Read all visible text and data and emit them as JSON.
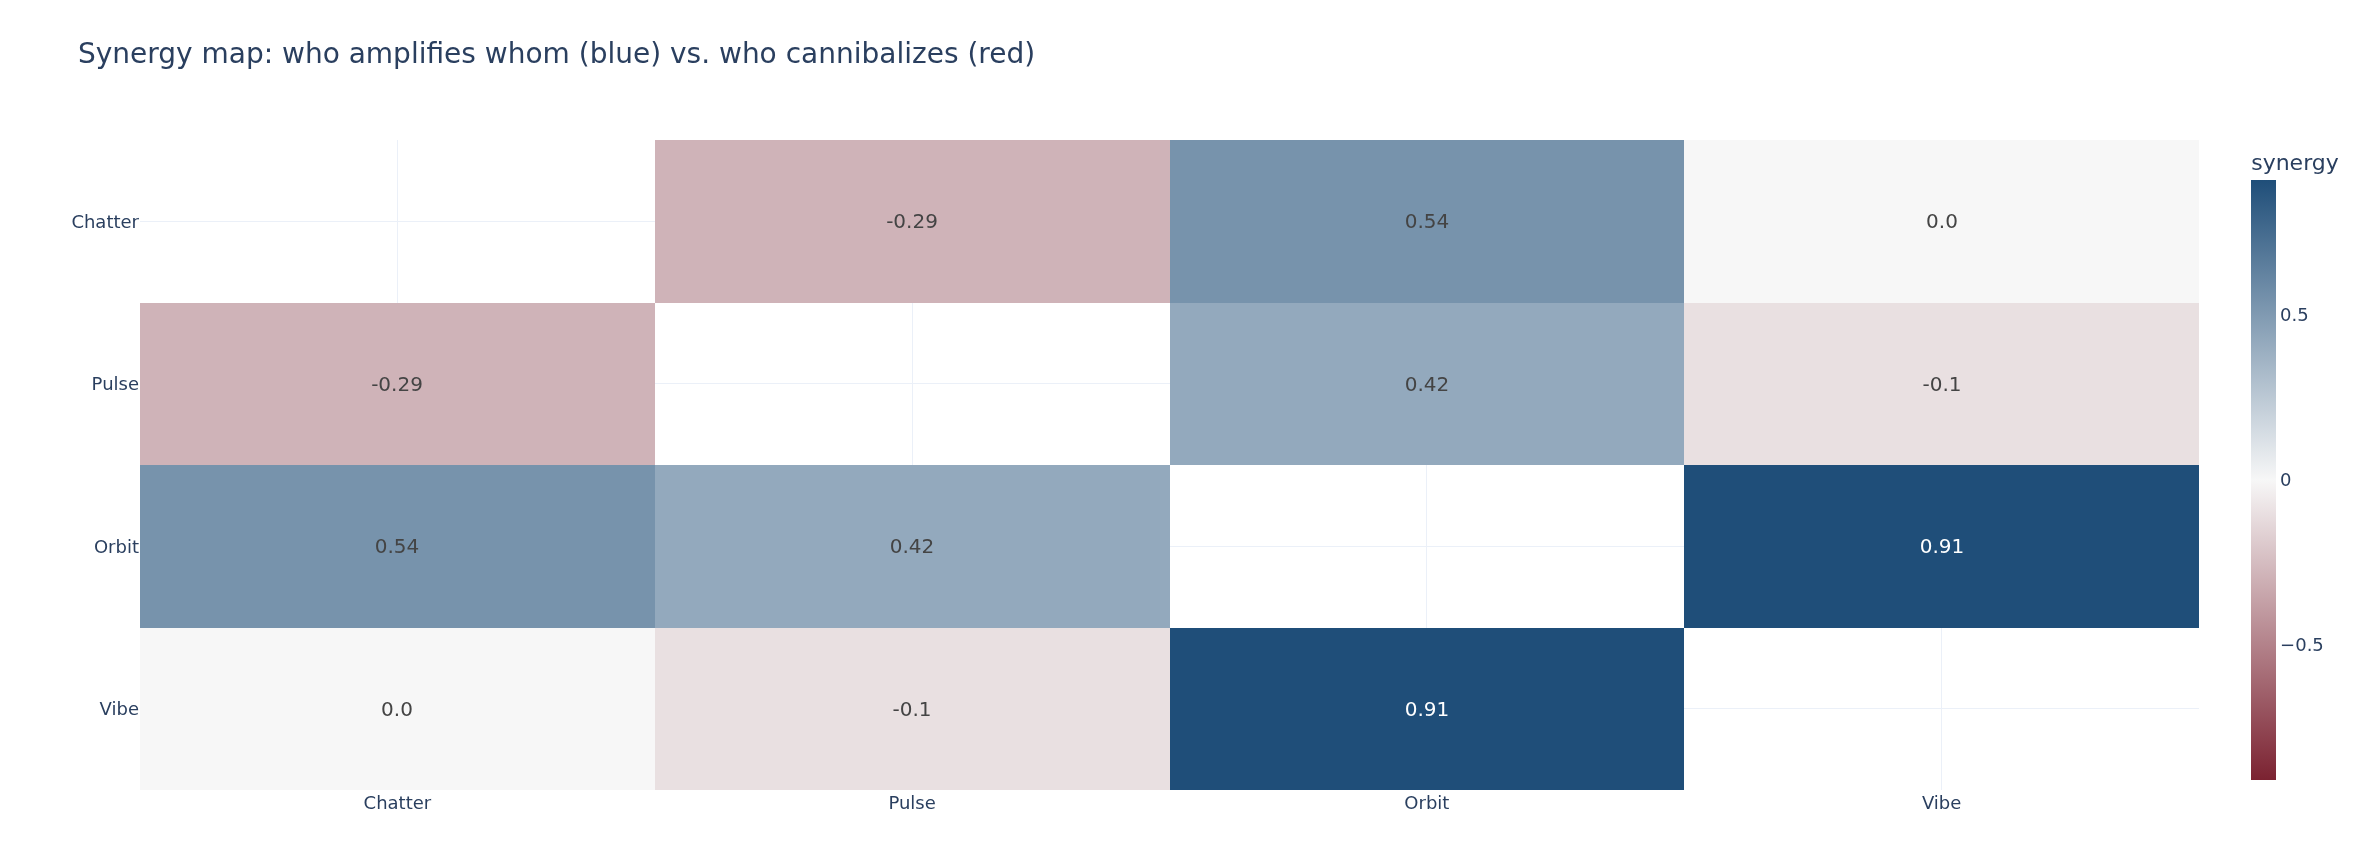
{
  "chart_data": {
    "type": "heatmap",
    "title": "Synergy map: who amplifies whom (blue) vs. who cannibalizes (red)",
    "categories": [
      "Chatter",
      "Pulse",
      "Orbit",
      "Vibe"
    ],
    "y_categories": [
      "Chatter",
      "Pulse",
      "Orbit",
      "Vibe"
    ],
    "cells": [
      [
        null,
        -0.29,
        0.54,
        0.0
      ],
      [
        -0.29,
        null,
        0.42,
        -0.1
      ],
      [
        0.54,
        0.42,
        null,
        0.91
      ],
      [
        0.0,
        -0.1,
        0.91,
        null
      ]
    ],
    "cell_labels": [
      [
        null,
        "-0.29",
        "0.54",
        "0.0"
      ],
      [
        "-0.29",
        null,
        "0.42",
        "-0.1"
      ],
      [
        "0.54",
        "0.42",
        null,
        "0.91"
      ],
      [
        "0.0",
        "-0.1",
        "0.91",
        null
      ]
    ],
    "clabel": "synergy",
    "clim": [
      -0.91,
      0.91
    ],
    "cticks": [
      {
        "value": -0.5,
        "label": "−0.5"
      },
      0,
      0.5
    ],
    "grid": true
  }
}
